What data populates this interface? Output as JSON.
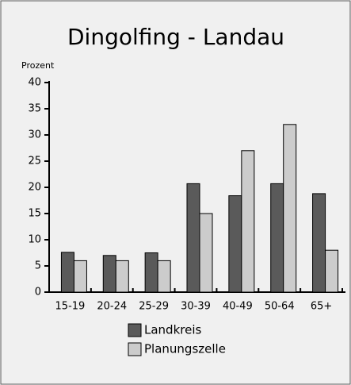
{
  "chart_data": {
    "type": "bar",
    "title": "Dingolfing - Landau",
    "y_label": "Prozent",
    "categories": [
      "15-19",
      "20-24",
      "25-29",
      "30-39",
      "40-49",
      "50-64",
      "65+"
    ],
    "series": [
      {
        "name": "Landkreis",
        "color": "#5a5a5a",
        "values": [
          7.6,
          7.0,
          7.5,
          20.7,
          18.4,
          20.7,
          18.8
        ]
      },
      {
        "name": "Planungszelle",
        "color": "#cccccc",
        "values": [
          6.0,
          6.0,
          6.0,
          15.0,
          27.0,
          32.0,
          8.0
        ]
      }
    ],
    "ylim": [
      0,
      40
    ],
    "yticks": [
      0,
      5,
      10,
      15,
      20,
      25,
      30,
      35,
      40
    ]
  }
}
